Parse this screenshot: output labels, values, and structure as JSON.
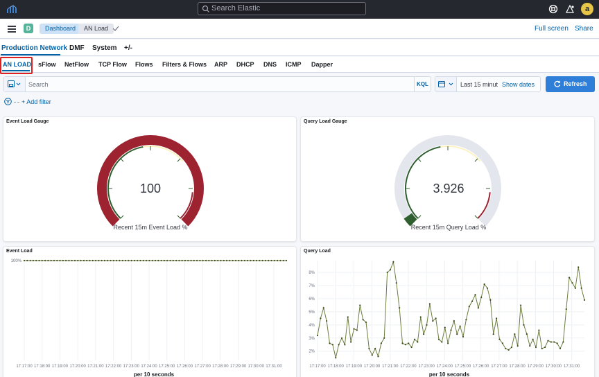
{
  "topbar": {
    "search_placeholder": "Search Elastic",
    "avatar_letter": "a"
  },
  "header": {
    "space_letter": "D",
    "breadcrumbs": [
      "Dashboard",
      "AN Load"
    ],
    "full_screen": "Full screen",
    "share": "Share"
  },
  "dashboard_tabs": [
    "Production Network",
    "DMF",
    "System",
    "+/-"
  ],
  "sub_tabs": [
    "AN LOAD",
    "sFlow",
    "NetFlow",
    "TCP Flow",
    "Flows",
    "Filters & Flows",
    "ARP",
    "DHCP",
    "DNS",
    "ICMP",
    "Dapper"
  ],
  "query": {
    "placeholder": "Search",
    "language": "KQL"
  },
  "time": {
    "range": "Last 15 minut",
    "show_dates": "Show dates",
    "refresh": "Refresh"
  },
  "filters": {
    "add_filter": "+ Add filter"
  },
  "colors": {
    "gauge_red": "#9e2330",
    "gauge_green": "#2f5e2f",
    "gauge_yellow": "#fdf3c2",
    "gauge_track": "#e3e6ec",
    "line": "#6b7d3c",
    "accent": "#0061a6"
  },
  "panels": {
    "event_gauge": {
      "title": "Event Load Gauge",
      "value": "100",
      "label": "Recent 15m Event Load %",
      "fraction": 1.0
    },
    "query_gauge": {
      "title": "Query Load Gauge",
      "value": "3.926",
      "label": "Recent 15m Query Load %",
      "fraction": 0.039
    },
    "event_load": {
      "title": "Event Load",
      "xlabel": "per 10 seconds"
    },
    "query_load": {
      "title": "Query Load",
      "xlabel": "per 10 seconds"
    }
  },
  "chart_data": [
    {
      "type": "line",
      "title": "Event Load",
      "xlabel": "per 10 seconds",
      "ylabel": "",
      "y_ticks": [
        "100%"
      ],
      "x_ticks": [
        "17:17:00",
        "17:18:00",
        "17:19:00",
        "17:20:00",
        "17:21:00",
        "17:22:00",
        "17:23:00",
        "17:24:00",
        "17:25:00",
        "17:26:00",
        "17:27:00",
        "17:28:00",
        "17:29:00",
        "17:30:00",
        "17:31:00"
      ],
      "x_range": [
        0,
        14.7
      ],
      "y_range": [
        0,
        100
      ],
      "values": [
        100,
        100,
        100,
        100,
        100,
        100,
        100,
        100,
        100,
        100,
        100,
        100,
        100,
        100,
        100,
        100,
        100,
        100,
        100,
        100,
        100,
        100,
        100,
        100,
        100,
        100,
        100,
        100,
        100,
        100,
        100,
        100,
        100,
        100,
        100,
        100,
        100,
        100,
        100,
        100,
        100,
        100,
        100,
        100,
        100,
        100,
        100,
        100,
        100,
        100,
        100,
        100,
        100,
        100,
        100,
        100,
        100,
        100,
        100,
        100,
        100,
        100,
        100,
        100,
        100,
        100,
        100,
        100,
        100,
        100,
        100,
        100,
        100,
        100,
        100,
        100,
        100,
        100,
        100,
        100,
        100,
        100,
        100,
        100,
        100,
        100,
        100,
        100,
        100
      ]
    },
    {
      "type": "line",
      "title": "Query Load",
      "xlabel": "per 10 seconds",
      "ylabel": "",
      "y_ticks": [
        "2%",
        "3%",
        "4%",
        "5%",
        "6%",
        "7%",
        "8%"
      ],
      "x_ticks": [
        "17:17:00",
        "17:18:00",
        "17:19:00",
        "17:20:00",
        "17:21:00",
        "17:22:00",
        "17:23:00",
        "17:24:00",
        "17:25:00",
        "17:26:00",
        "17:27:00",
        "17:28:00",
        "17:29:00",
        "17:30:00",
        "17:31:00"
      ],
      "x_range": [
        0,
        14.7
      ],
      "y_range": [
        1.3,
        8.9
      ],
      "values": [
        3.2,
        4.5,
        5.3,
        4.3,
        2.6,
        2.5,
        1.5,
        2.5,
        3.0,
        2.5,
        4.6,
        2.7,
        3.7,
        3.6,
        5.5,
        4.4,
        4.2,
        2.2,
        1.7,
        2.2,
        1.6,
        2.6,
        3.0,
        8.0,
        8.2,
        8.8,
        7.2,
        5.3,
        2.6,
        2.5,
        2.6,
        2.3,
        2.9,
        2.7,
        4.6,
        3.3,
        4.0,
        5.6,
        4.3,
        4.5,
        2.9,
        2.7,
        3.8,
        2.6,
        3.6,
        4.3,
        3.3,
        3.9,
        3.1,
        4.4,
        5.4,
        5.8,
        6.3,
        5.3,
        6.1,
        7.1,
        6.8,
        5.9,
        3.3,
        4.5,
        2.9,
        2.6,
        2.2,
        2.1,
        2.3,
        3.3,
        2.4,
        5.5,
        4.0,
        3.3,
        2.4,
        2.9,
        2.3,
        3.6,
        2.2,
        2.3,
        2.8,
        2.7,
        2.7,
        2.6,
        2.2,
        2.7,
        5.2,
        7.6,
        7.2,
        6.8,
        8.4,
        6.8,
        5.9
      ]
    }
  ]
}
